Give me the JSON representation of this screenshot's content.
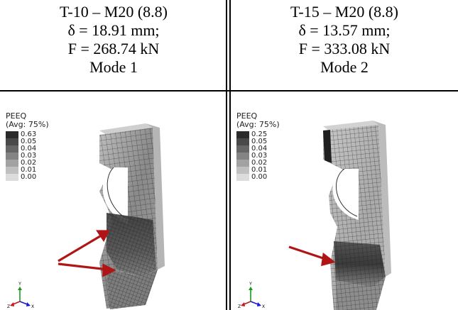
{
  "panels": [
    {
      "title": "T-10 – M20 (8.8)",
      "delta": "δ = 18.91 mm;",
      "force": "F = 268.74 kN",
      "mode": "Mode 1",
      "legend": {
        "title": "PEEQ",
        "avg": "(Avg: 75%)",
        "values": [
          "0.63",
          "0.05",
          "0.04",
          "0.03",
          "0.02",
          "0.01",
          "0.00"
        ]
      },
      "arrows": 2
    },
    {
      "title": "T-15 – M20 (8.8)",
      "delta": "δ = 13.57 mm;",
      "force": "F = 333.08 kN",
      "mode": "Mode 2",
      "legend": {
        "title": "PEEQ",
        "avg": "(Avg: 75%)",
        "values": [
          "0.25",
          "0.05",
          "0.04",
          "0.03",
          "0.02",
          "0.01",
          "0.00"
        ]
      },
      "arrows": 1
    }
  ],
  "triad": {
    "y": "Y",
    "z": "Z",
    "x": "X"
  },
  "colors": {
    "arrow": "#b01515",
    "mesh_dark": "#2e2e2e",
    "mesh_light": "#a6a6a6"
  }
}
